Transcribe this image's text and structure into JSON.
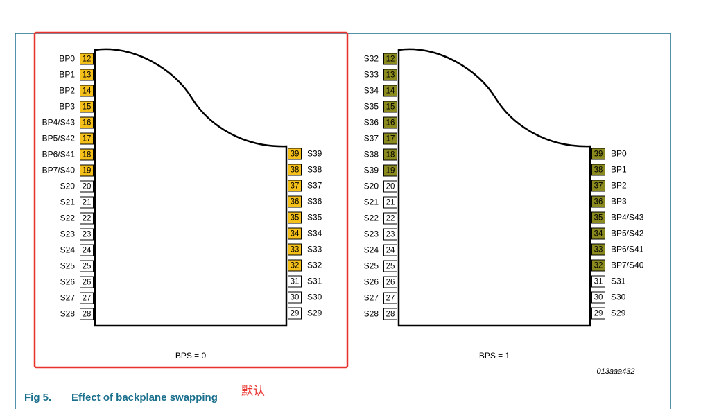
{
  "diagrams": [
    {
      "caption": "BPS = 0",
      "highlight_color": "#f6c01a",
      "left_pins": [
        {
          "label": "BP0",
          "number": 12,
          "highlighted": true
        },
        {
          "label": "BP1",
          "number": 13,
          "highlighted": true
        },
        {
          "label": "BP2",
          "number": 14,
          "highlighted": true
        },
        {
          "label": "BP3",
          "number": 15,
          "highlighted": true
        },
        {
          "label": "BP4/S43",
          "number": 16,
          "highlighted": true
        },
        {
          "label": "BP5/S42",
          "number": 17,
          "highlighted": true
        },
        {
          "label": "BP6/S41",
          "number": 18,
          "highlighted": true
        },
        {
          "label": "BP7/S40",
          "number": 19,
          "highlighted": true
        },
        {
          "label": "S20",
          "number": 20,
          "highlighted": false
        },
        {
          "label": "S21",
          "number": 21,
          "highlighted": false
        },
        {
          "label": "S22",
          "number": 22,
          "highlighted": false
        },
        {
          "label": "S23",
          "number": 23,
          "highlighted": false
        },
        {
          "label": "S24",
          "number": 24,
          "highlighted": false
        },
        {
          "label": "S25",
          "number": 25,
          "highlighted": false
        },
        {
          "label": "S26",
          "number": 26,
          "highlighted": false
        },
        {
          "label": "S27",
          "number": 27,
          "highlighted": false
        },
        {
          "label": "S28",
          "number": 28,
          "highlighted": false
        }
      ],
      "right_pins": [
        {
          "label": "S39",
          "number": 39,
          "highlighted": true
        },
        {
          "label": "S38",
          "number": 38,
          "highlighted": true
        },
        {
          "label": "S37",
          "number": 37,
          "highlighted": true
        },
        {
          "label": "S36",
          "number": 36,
          "highlighted": true
        },
        {
          "label": "S35",
          "number": 35,
          "highlighted": true
        },
        {
          "label": "S34",
          "number": 34,
          "highlighted": true
        },
        {
          "label": "S33",
          "number": 33,
          "highlighted": true
        },
        {
          "label": "S32",
          "number": 32,
          "highlighted": true
        },
        {
          "label": "S31",
          "number": 31,
          "highlighted": false
        },
        {
          "label": "S30",
          "number": 30,
          "highlighted": false
        },
        {
          "label": "S29",
          "number": 29,
          "highlighted": false
        }
      ]
    },
    {
      "caption": "BPS = 1",
      "highlight_color": "#8a8a1e",
      "left_pins": [
        {
          "label": "S32",
          "number": 12,
          "highlighted": true
        },
        {
          "label": "S33",
          "number": 13,
          "highlighted": true
        },
        {
          "label": "S34",
          "number": 14,
          "highlighted": true
        },
        {
          "label": "S35",
          "number": 15,
          "highlighted": true
        },
        {
          "label": "S36",
          "number": 16,
          "highlighted": true
        },
        {
          "label": "S37",
          "number": 17,
          "highlighted": true
        },
        {
          "label": "S38",
          "number": 18,
          "highlighted": true
        },
        {
          "label": "S39",
          "number": 19,
          "highlighted": true
        },
        {
          "label": "S20",
          "number": 20,
          "highlighted": false
        },
        {
          "label": "S21",
          "number": 21,
          "highlighted": false
        },
        {
          "label": "S22",
          "number": 22,
          "highlighted": false
        },
        {
          "label": "S23",
          "number": 23,
          "highlighted": false
        },
        {
          "label": "S24",
          "number": 24,
          "highlighted": false
        },
        {
          "label": "S25",
          "number": 25,
          "highlighted": false
        },
        {
          "label": "S26",
          "number": 26,
          "highlighted": false
        },
        {
          "label": "S27",
          "number": 27,
          "highlighted": false
        },
        {
          "label": "S28",
          "number": 28,
          "highlighted": false
        }
      ],
      "right_pins": [
        {
          "label": "BP0",
          "number": 39,
          "highlighted": true
        },
        {
          "label": "BP1",
          "number": 38,
          "highlighted": true
        },
        {
          "label": "BP2",
          "number": 37,
          "highlighted": true
        },
        {
          "label": "BP3",
          "number": 36,
          "highlighted": true
        },
        {
          "label": "BP4/S43",
          "number": 35,
          "highlighted": true
        },
        {
          "label": "BP5/S42",
          "number": 34,
          "highlighted": true
        },
        {
          "label": "BP6/S41",
          "number": 33,
          "highlighted": true
        },
        {
          "label": "BP7/S40",
          "number": 32,
          "highlighted": true
        },
        {
          "label": "S31",
          "number": 31,
          "highlighted": false
        },
        {
          "label": "S30",
          "number": 30,
          "highlighted": false
        },
        {
          "label": "S29",
          "number": 29,
          "highlighted": false
        }
      ]
    }
  ],
  "figure_id": "013aaa432",
  "figure": {
    "number": "Fig 5.",
    "title": "Effect of backplane swapping"
  },
  "annotation": "默认"
}
